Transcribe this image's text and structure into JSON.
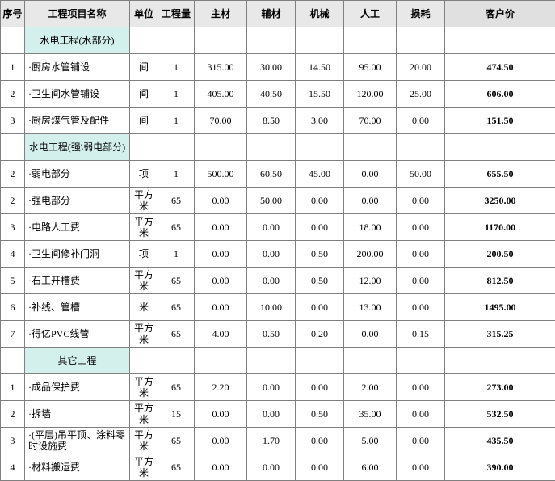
{
  "columns": [
    "序号",
    "工程项目名称",
    "单位",
    "工程量",
    "主材",
    "辅材",
    "机械",
    "人工",
    "损耗",
    "客户价"
  ],
  "sections": [
    {
      "title": "水电工程(水部分)",
      "rows": [
        {
          "idx": "1",
          "name": "·厨房水管铺设",
          "unit": "间",
          "qty": "1",
          "main": "315.00",
          "aux": "30.00",
          "mach": "14.50",
          "labor": "95.00",
          "loss": "20.00",
          "total": "474.50"
        },
        {
          "idx": "2",
          "name": "·卫生间水管铺设",
          "unit": "间",
          "qty": "1",
          "main": "405.00",
          "aux": "40.50",
          "mach": "15.50",
          "labor": "120.00",
          "loss": "25.00",
          "total": "606.00"
        },
        {
          "idx": "3",
          "name": "·厨房煤气管及配件",
          "unit": "间",
          "qty": "1",
          "main": "70.00",
          "aux": "8.50",
          "mach": "3.00",
          "labor": "70.00",
          "loss": "0.00",
          "total": "151.50"
        }
      ]
    },
    {
      "title": "水电工程(强\\弱电部分)",
      "rows": [
        {
          "idx": "2",
          "name": "·弱电部分",
          "unit": "项",
          "qty": "1",
          "main": "500.00",
          "aux": "60.50",
          "mach": "45.00",
          "labor": "0.00",
          "loss": "50.00",
          "total": "655.50"
        },
        {
          "idx": "2",
          "name": "·强电部分",
          "unit": "平方米",
          "qty": "65",
          "main": "0.00",
          "aux": "50.00",
          "mach": "0.00",
          "labor": "0.00",
          "loss": "0.00",
          "total": "3250.00"
        },
        {
          "idx": "3",
          "name": "·电路人工费",
          "unit": "平方米",
          "qty": "65",
          "main": "0.00",
          "aux": "0.00",
          "mach": "0.00",
          "labor": "18.00",
          "loss": "0.00",
          "total": "1170.00"
        },
        {
          "idx": "4",
          "name": "·卫生间修补门洞",
          "unit": "项",
          "qty": "1",
          "main": "0.00",
          "aux": "0.00",
          "mach": "0.50",
          "labor": "200.00",
          "loss": "0.00",
          "total": "200.50"
        },
        {
          "idx": "5",
          "name": "·石工开槽费",
          "unit": "平方米",
          "qty": "65",
          "main": "0.00",
          "aux": "0.00",
          "mach": "0.50",
          "labor": "12.00",
          "loss": "0.00",
          "total": "812.50"
        },
        {
          "idx": "6",
          "name": "·补线、管槽",
          "unit": "米",
          "qty": "65",
          "main": "0.00",
          "aux": "10.00",
          "mach": "0.00",
          "labor": "13.00",
          "loss": "0.00",
          "total": "1495.00"
        },
        {
          "idx": "7",
          "name": "·得亿PVC线管",
          "unit": "平方米",
          "qty": "65",
          "main": "4.00",
          "aux": "0.50",
          "mach": "0.20",
          "labor": "0.00",
          "loss": "0.15",
          "total": "315.25"
        }
      ]
    },
    {
      "title": "其它工程",
      "rows": [
        {
          "idx": "1",
          "name": "·成品保护费",
          "unit": "平方米",
          "qty": "65",
          "main": "2.20",
          "aux": "0.00",
          "mach": "0.00",
          "labor": "2.00",
          "loss": "0.00",
          "total": "273.00"
        },
        {
          "idx": "2",
          "name": "·拆墙",
          "unit": "平方米",
          "qty": "15",
          "main": "0.00",
          "aux": "0.00",
          "mach": "0.50",
          "labor": "35.00",
          "loss": "0.00",
          "total": "532.50"
        },
        {
          "idx": "3",
          "name": "·(平层)吊平顶、涂料零时设施费",
          "unit": "平方米",
          "qty": "65",
          "main": "0.00",
          "aux": "1.70",
          "mach": "0.00",
          "labor": "5.00",
          "loss": "0.00",
          "total": "435.50"
        },
        {
          "idx": "4",
          "name": "·材料搬运费",
          "unit": "平方米",
          "qty": "65",
          "main": "0.00",
          "aux": "0.00",
          "mach": "0.00",
          "labor": "6.00",
          "loss": "0.00",
          "total": "390.00"
        }
      ]
    }
  ]
}
